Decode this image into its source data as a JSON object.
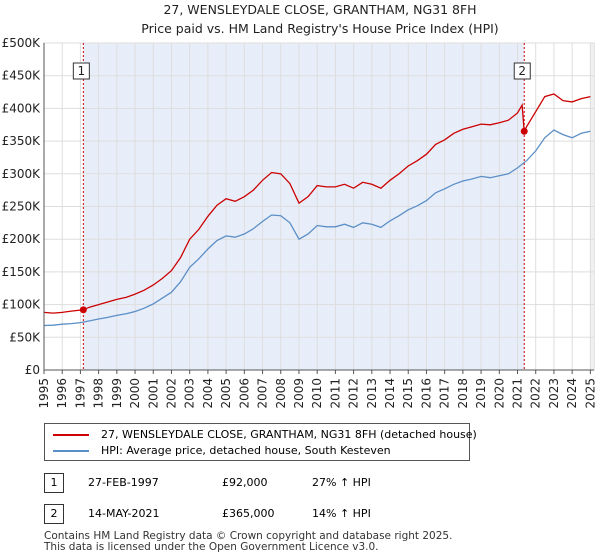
{
  "chart_data": {
    "type": "line",
    "title": "27, WENSLEYDALE CLOSE, GRANTHAM, NG31 8FH",
    "subtitle": "Price paid vs. HM Land Registry's House Price Index (HPI)",
    "xlabel": "",
    "ylabel": "",
    "xlim": [
      1995,
      2025.2
    ],
    "ylim": [
      0,
      500000
    ],
    "y_ticks": [
      0,
      50000,
      100000,
      150000,
      200000,
      250000,
      300000,
      350000,
      400000,
      450000,
      500000
    ],
    "y_tick_labels": [
      "£0",
      "£50K",
      "£100K",
      "£150K",
      "£200K",
      "£250K",
      "£300K",
      "£350K",
      "£400K",
      "£450K",
      "£500K"
    ],
    "x_ticks": [
      1995,
      1996,
      1997,
      1998,
      1999,
      2000,
      2001,
      2002,
      2003,
      2004,
      2005,
      2006,
      2007,
      2008,
      2009,
      2010,
      2011,
      2012,
      2013,
      2014,
      2015,
      2016,
      2017,
      2018,
      2019,
      2020,
      2021,
      2022,
      2023,
      2024,
      2025
    ],
    "x_tick_labels": [
      "1995",
      "1996",
      "1997",
      "1998",
      "1999",
      "2000",
      "2001",
      "2002",
      "2003",
      "2004",
      "2005",
      "2006",
      "2007",
      "2008",
      "2009",
      "2010",
      "2011",
      "2012",
      "2013",
      "2014",
      "2015",
      "2016",
      "2017",
      "2018",
      "2019",
      "2020",
      "2021",
      "2022",
      "2023",
      "2024",
      "2025"
    ],
    "grid": true,
    "legend_position": "below",
    "series": [
      {
        "name": "27, WENSLEYDALE CLOSE, GRANTHAM, NG31 8FH (detached house)",
        "color": "#cc0000",
        "x": [
          1995.0,
          1995.5,
          1996.0,
          1996.5,
          1997.16,
          1997.5,
          1998.0,
          1998.5,
          1999.0,
          1999.5,
          2000.0,
          2000.5,
          2001.0,
          2001.5,
          2002.0,
          2002.5,
          2003.0,
          2003.5,
          2004.0,
          2004.5,
          2005.0,
          2005.5,
          2006.0,
          2006.5,
          2007.0,
          2007.5,
          2008.0,
          2008.5,
          2009.0,
          2009.5,
          2010.0,
          2010.5,
          2011.0,
          2011.5,
          2012.0,
          2012.5,
          2013.0,
          2013.5,
          2014.0,
          2014.5,
          2015.0,
          2015.5,
          2016.0,
          2016.5,
          2017.0,
          2017.5,
          2018.0,
          2018.5,
          2019.0,
          2019.5,
          2020.0,
          2020.5,
          2021.0,
          2021.25,
          2021.37,
          2021.5,
          2022.0,
          2022.5,
          2023.0,
          2023.5,
          2024.0,
          2024.5,
          2025.0
        ],
        "y": [
          88000,
          87000,
          88000,
          90000,
          92000,
          96000,
          100000,
          104000,
          108000,
          111000,
          116000,
          122000,
          130000,
          140000,
          152000,
          172000,
          200000,
          215000,
          235000,
          252000,
          262000,
          258000,
          265000,
          275000,
          290000,
          302000,
          300000,
          285000,
          255000,
          265000,
          282000,
          280000,
          280000,
          284000,
          278000,
          287000,
          284000,
          278000,
          290000,
          300000,
          312000,
          320000,
          330000,
          345000,
          352000,
          362000,
          368000,
          372000,
          376000,
          375000,
          378000,
          382000,
          393000,
          405000,
          365000,
          372000,
          395000,
          418000,
          422000,
          412000,
          410000,
          415000,
          418000
        ]
      },
      {
        "name": "HPI: Average price, detached house, South Kesteven",
        "color": "#5b8fc7",
        "x": [
          1995.0,
          1995.5,
          1996.0,
          1996.5,
          1997.0,
          1997.5,
          1998.0,
          1998.5,
          1999.0,
          1999.5,
          2000.0,
          2000.5,
          2001.0,
          2001.5,
          2002.0,
          2002.5,
          2003.0,
          2003.5,
          2004.0,
          2004.5,
          2005.0,
          2005.5,
          2006.0,
          2006.5,
          2007.0,
          2007.5,
          2008.0,
          2008.5,
          2009.0,
          2009.5,
          2010.0,
          2010.5,
          2011.0,
          2011.5,
          2012.0,
          2012.5,
          2013.0,
          2013.5,
          2014.0,
          2014.5,
          2015.0,
          2015.5,
          2016.0,
          2016.5,
          2017.0,
          2017.5,
          2018.0,
          2018.5,
          2019.0,
          2019.5,
          2020.0,
          2020.5,
          2021.0,
          2021.5,
          2022.0,
          2022.5,
          2023.0,
          2023.5,
          2024.0,
          2024.5,
          2025.0
        ],
        "y": [
          68000,
          68500,
          70000,
          71000,
          72500,
          75000,
          78000,
          80500,
          83500,
          86000,
          89500,
          94500,
          101000,
          110000,
          119000,
          135000,
          157000,
          170000,
          185000,
          198000,
          205000,
          203000,
          208000,
          216000,
          227000,
          237000,
          236000,
          225000,
          200000,
          208000,
          221000,
          219000,
          219000,
          223000,
          218000,
          225000,
          223000,
          218000,
          228000,
          236000,
          245000,
          251000,
          259000,
          271000,
          277000,
          284000,
          289000,
          292000,
          296000,
          294000,
          297000,
          300000,
          309000,
          320000,
          335000,
          355000,
          367000,
          360000,
          355000,
          362000,
          365000
        ]
      }
    ],
    "markers": [
      {
        "label": "1",
        "x": 1997.16,
        "y": 92000
      },
      {
        "label": "2",
        "x": 2021.37,
        "y": 365000
      }
    ],
    "marker_lines": [
      1997.16,
      2021.37
    ],
    "shaded_range": [
      1997.16,
      2021.37
    ]
  },
  "sales": [
    {
      "num": "1",
      "date": "27-FEB-1997",
      "price": "£92,000",
      "hpi": "27% ↑ HPI"
    },
    {
      "num": "2",
      "date": "14-MAY-2021",
      "price": "£365,000",
      "hpi": "14% ↑ HPI"
    }
  ],
  "footer": {
    "line1": "Contains HM Land Registry data © Crown copyright and database right 2025.",
    "line2": "This data is licensed under the Open Government Licence v3.0."
  },
  "colors": {
    "property": "#cc0000",
    "hpi": "#5b8fc7",
    "shade": "#e8eef9",
    "grid": "#dddddd"
  }
}
